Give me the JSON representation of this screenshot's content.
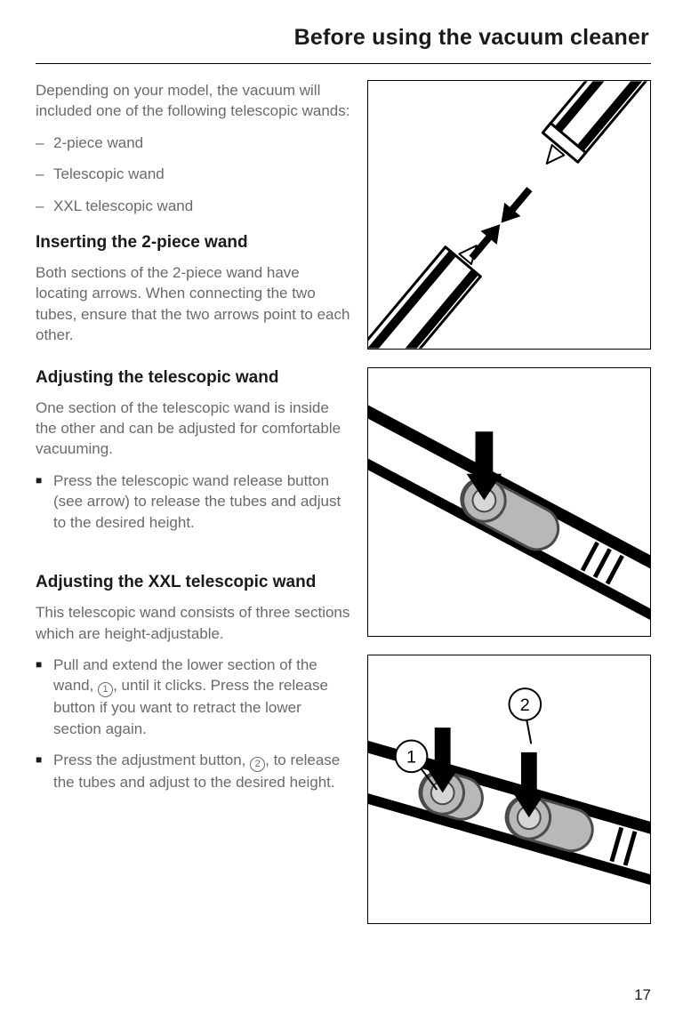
{
  "title": "Before using the vacuum cleaner",
  "page_number": "17",
  "intro": "Depending on your model, the vacuum will included one of the following telescopic wands:",
  "wand_options": [
    "2-piece wand",
    "Telescopic wand",
    "XXL telescopic wand"
  ],
  "sections": {
    "s1": {
      "heading": "Inserting the 2-piece wand",
      "body": "Both sections of the 2-piece wand have locating arrows. When connecting the two tubes, ensure that the two arrows point to each other."
    },
    "s2": {
      "heading": "Adjusting the telescopic wand",
      "body": "One section of the telescopic wand is inside the other and can be adjusted for comfortable vacuuming.",
      "bullets": [
        "Press the telescopic wand release button (see arrow) to release the tubes and adjust to the desired height."
      ]
    },
    "s3": {
      "heading": "Adjusting the XXL telescopic wand",
      "body": "This telescopic wand consists of three sections which are height-adjustable.",
      "bullets": [
        "Pull and extend the lower section of the wand, ①, until it clicks. Press the release button if you want to retract the lower section again.",
        "Press the adjustment button, ②, to release the tubes and adjust to the desired height."
      ]
    }
  },
  "figures": {
    "fig1": {
      "type": "illustration",
      "desc": "two-piece-wand-arrows",
      "stroke": "#000000",
      "fill_light": "#ffffff",
      "fill_dark": "#000000"
    },
    "fig2": {
      "type": "illustration",
      "desc": "telescopic-wand-release-button",
      "stroke": "#000000",
      "button_fill": "#b8b8b8",
      "button_stroke": "#4a4a4a",
      "arrow_fill": "#000000"
    },
    "fig3": {
      "type": "illustration",
      "desc": "xxl-telescopic-wand-two-buttons",
      "stroke": "#000000",
      "button_fill": "#b8b8b8",
      "button_stroke": "#4a4a4a",
      "arrow_fill": "#000000",
      "callouts": {
        "c1": "1",
        "c2": "2"
      },
      "callout_stroke": "#000000",
      "callout_fontsize": 20
    }
  }
}
